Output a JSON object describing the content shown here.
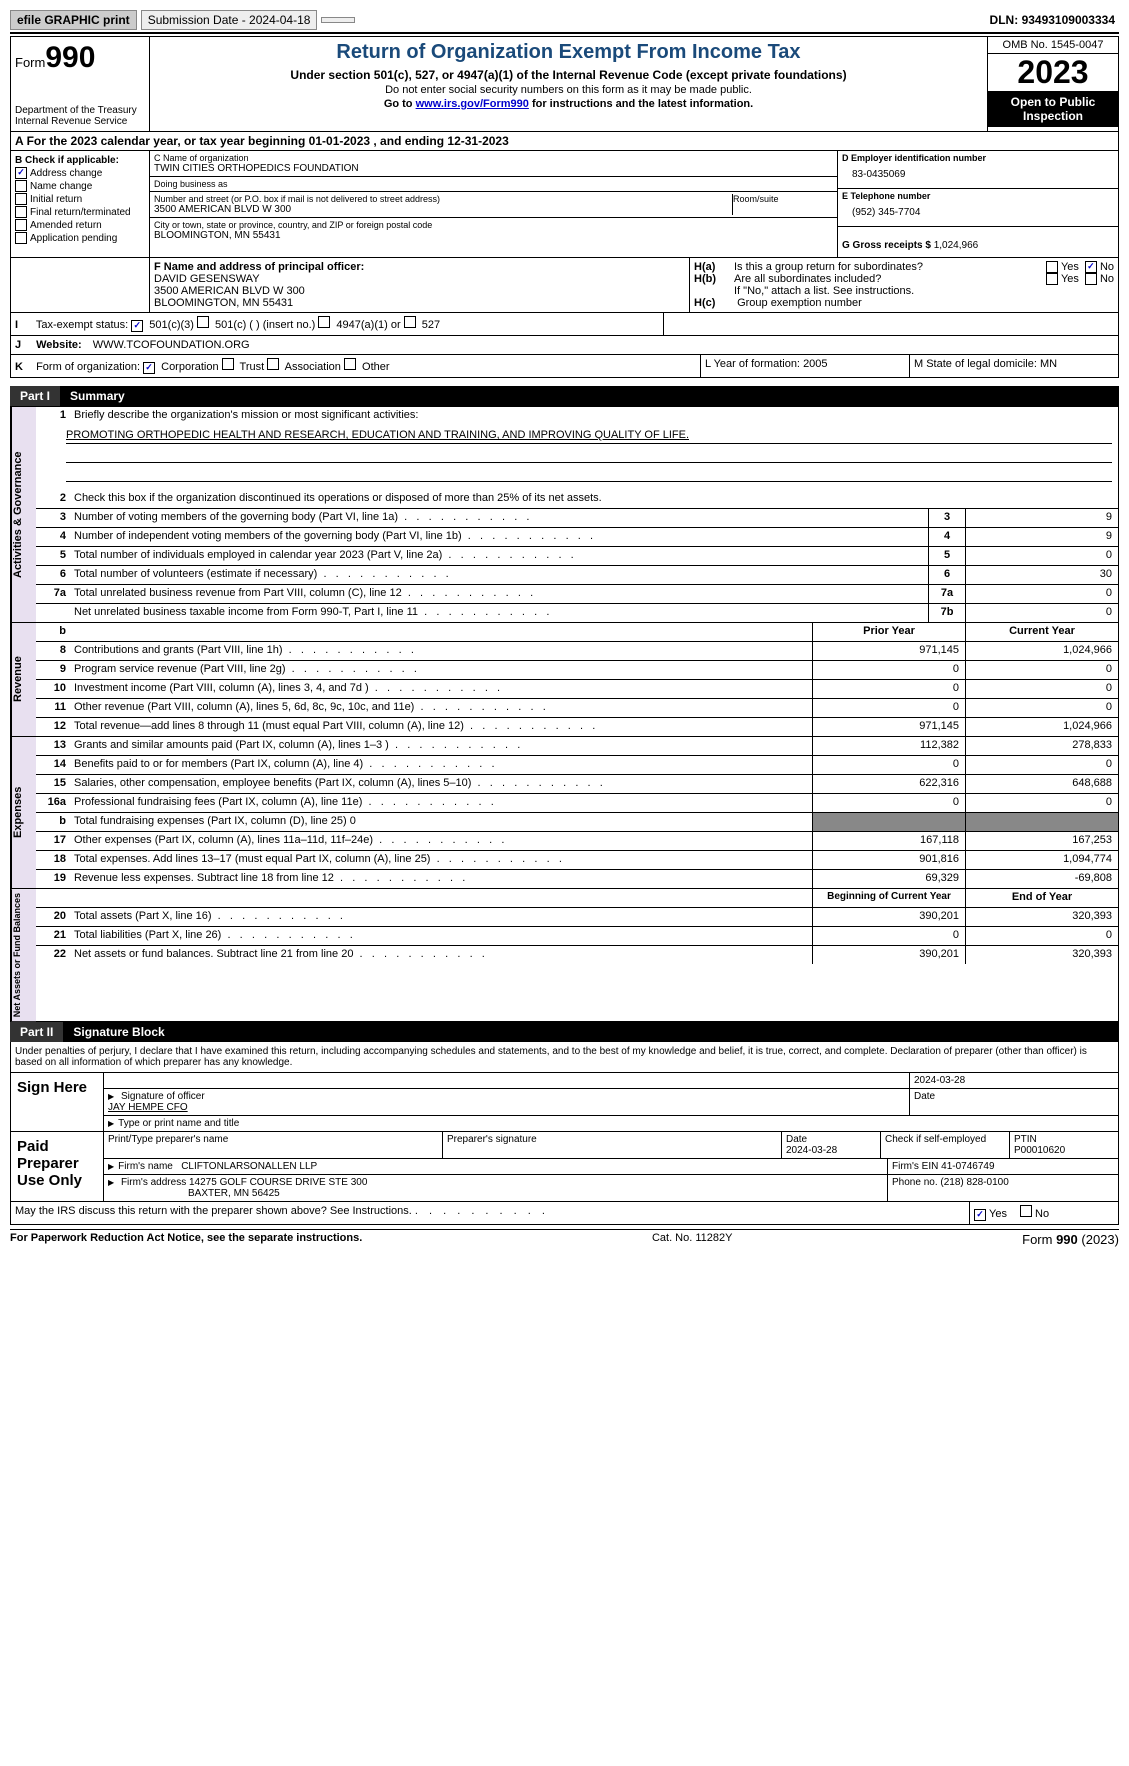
{
  "topbar": {
    "efile": "efile GRAPHIC print",
    "submission": "Submission Date - 2024-04-18",
    "dln_label": "DLN:",
    "dln": "93493109003334"
  },
  "header": {
    "form_small": "Form",
    "form_big": "990",
    "dept": "Department of the Treasury Internal Revenue Service",
    "title": "Return of Organization Exempt From Income Tax",
    "subtitle": "Under section 501(c), 527, or 4947(a)(1) of the Internal Revenue Code (except private foundations)",
    "note1": "Do not enter social security numbers on this form as it may be made public.",
    "note2_pre": "Go to ",
    "note2_link": "www.irs.gov/Form990",
    "note2_post": " for instructions and the latest information.",
    "omb": "OMB No. 1545-0047",
    "year": "2023",
    "inspect": "Open to Public Inspection"
  },
  "taxyear": "For the 2023 calendar year, or tax year beginning 01-01-2023   , and ending 12-31-2023",
  "boxB": {
    "header": "B Check if applicable:",
    "items": [
      {
        "label": "Address change",
        "checked": true
      },
      {
        "label": "Name change",
        "checked": false
      },
      {
        "label": "Initial return",
        "checked": false
      },
      {
        "label": "Final return/terminated",
        "checked": false
      },
      {
        "label": "Amended return",
        "checked": false
      },
      {
        "label": "Application pending",
        "checked": false
      }
    ]
  },
  "boxC": {
    "name_lbl": "C Name of organization",
    "name": "TWIN CITIES ORTHOPEDICS FOUNDATION",
    "dba_lbl": "Doing business as",
    "dba": "",
    "street_lbl": "Number and street (or P.O. box if mail is not delivered to street address)",
    "street": "3500 AMERICAN BLVD W 300",
    "room_lbl": "Room/suite",
    "city_lbl": "City or town, state or province, country, and ZIP or foreign postal code",
    "city": "BLOOMINGTON, MN  55431"
  },
  "boxD": {
    "lbl": "D Employer identification number",
    "val": "83-0435069"
  },
  "boxE": {
    "lbl": "E Telephone number",
    "val": "(952) 345-7704"
  },
  "boxG": {
    "lbl": "G Gross receipts $",
    "val": "1,024,966"
  },
  "boxF": {
    "lbl": "F  Name and address of principal officer:",
    "name": "DAVID GESENSWAY",
    "addr1": "3500 AMERICAN BLVD W 300",
    "addr2": "BLOOMINGTON, MN  55431"
  },
  "boxH": {
    "a_lbl": "Is this a group return for subordinates?",
    "a_yes": false,
    "a_no": true,
    "b_lbl": "Are all subordinates included?",
    "b_note": "If \"No,\" attach a list. See instructions.",
    "c_lbl": "Group exemption number"
  },
  "boxI": {
    "lbl": "Tax-exempt status:",
    "opts": [
      "501(c)(3)",
      "501(c) (  ) (insert no.)",
      "4947(a)(1) or",
      "527"
    ],
    "checked_idx": 0
  },
  "boxJ": {
    "lbl": "Website:",
    "val": "WWW.TCOFOUNDATION.ORG"
  },
  "boxK": {
    "lbl": "Form of organization:",
    "opts": [
      "Corporation",
      "Trust",
      "Association",
      "Other"
    ],
    "checked_idx": 0
  },
  "boxL": {
    "lbl": "L Year of formation:",
    "val": "2005"
  },
  "boxM": {
    "lbl": "M State of legal domicile:",
    "val": "MN"
  },
  "partI": {
    "num": "Part I",
    "title": "Summary",
    "line1_lbl": "Briefly describe the organization's mission or most significant activities:",
    "line1_val": "PROMOTING ORTHOPEDIC HEALTH AND RESEARCH, EDUCATION AND TRAINING, AND IMPROVING QUALITY OF LIFE.",
    "line2": "Check this box      if the organization discontinued its operations or disposed of more than 25% of its net assets.",
    "governance_rows": [
      {
        "n": "3",
        "d": "Number of voting members of the governing body (Part VI, line 1a)",
        "box": "3",
        "v": "9"
      },
      {
        "n": "4",
        "d": "Number of independent voting members of the governing body (Part VI, line 1b)",
        "box": "4",
        "v": "9"
      },
      {
        "n": "5",
        "d": "Total number of individuals employed in calendar year 2023 (Part V, line 2a)",
        "box": "5",
        "v": "0"
      },
      {
        "n": "6",
        "d": "Total number of volunteers (estimate if necessary)",
        "box": "6",
        "v": "30"
      },
      {
        "n": "7a",
        "d": "Total unrelated business revenue from Part VIII, column (C), line 12",
        "box": "7a",
        "v": "0"
      },
      {
        "n": "",
        "d": "Net unrelated business taxable income from Form 990-T, Part I, line 11",
        "box": "7b",
        "v": "0"
      }
    ],
    "rev_hdr_prior": "Prior Year",
    "rev_hdr_curr": "Current Year",
    "revenue_rows": [
      {
        "n": "8",
        "d": "Contributions and grants (Part VIII, line 1h)",
        "p": "971,145",
        "c": "1,024,966"
      },
      {
        "n": "9",
        "d": "Program service revenue (Part VIII, line 2g)",
        "p": "0",
        "c": "0"
      },
      {
        "n": "10",
        "d": "Investment income (Part VIII, column (A), lines 3, 4, and 7d )",
        "p": "0",
        "c": "0"
      },
      {
        "n": "11",
        "d": "Other revenue (Part VIII, column (A), lines 5, 6d, 8c, 9c, 10c, and 11e)",
        "p": "0",
        "c": "0"
      },
      {
        "n": "12",
        "d": "Total revenue—add lines 8 through 11 (must equal Part VIII, column (A), line 12)",
        "p": "971,145",
        "c": "1,024,966"
      }
    ],
    "expense_rows": [
      {
        "n": "13",
        "d": "Grants and similar amounts paid (Part IX, column (A), lines 1–3 )",
        "p": "112,382",
        "c": "278,833"
      },
      {
        "n": "14",
        "d": "Benefits paid to or for members (Part IX, column (A), line 4)",
        "p": "0",
        "c": "0"
      },
      {
        "n": "15",
        "d": "Salaries, other compensation, employee benefits (Part IX, column (A), lines 5–10)",
        "p": "622,316",
        "c": "648,688"
      },
      {
        "n": "16a",
        "d": "Professional fundraising fees (Part IX, column (A), line 11e)",
        "p": "0",
        "c": "0"
      },
      {
        "n": "b",
        "d": "Total fundraising expenses (Part IX, column (D), line 25) 0",
        "p": "GREY",
        "c": "GREY"
      },
      {
        "n": "17",
        "d": "Other expenses (Part IX, column (A), lines 11a–11d, 11f–24e)",
        "p": "167,118",
        "c": "167,253"
      },
      {
        "n": "18",
        "d": "Total expenses. Add lines 13–17 (must equal Part IX, column (A), line 25)",
        "p": "901,816",
        "c": "1,094,774"
      },
      {
        "n": "19",
        "d": "Revenue less expenses. Subtract line 18 from line 12",
        "p": "69,329",
        "c": "-69,808"
      }
    ],
    "na_hdr_prior": "Beginning of Current Year",
    "na_hdr_curr": "End of Year",
    "netassets_rows": [
      {
        "n": "20",
        "d": "Total assets (Part X, line 16)",
        "p": "390,201",
        "c": "320,393"
      },
      {
        "n": "21",
        "d": "Total liabilities (Part X, line 26)",
        "p": "0",
        "c": "0"
      },
      {
        "n": "22",
        "d": "Net assets or fund balances. Subtract line 21 from line 20",
        "p": "390,201",
        "c": "320,393"
      }
    ],
    "side_labels": {
      "gov": "Activities & Governance",
      "rev": "Revenue",
      "exp": "Expenses",
      "na": "Net Assets or Fund Balances"
    }
  },
  "partII": {
    "num": "Part II",
    "title": "Signature Block",
    "declaration": "Under penalties of perjury, I declare that I have examined this return, including accompanying schedules and statements, and to the best of my knowledge and belief, it is true, correct, and complete. Declaration of preparer (other than officer) is based on all information of which preparer has any knowledge.",
    "sign_here": "Sign Here",
    "sig_date": "2024-03-28",
    "sig_officer_lbl": "Signature of officer",
    "sig_officer": "JAY HEMPE  CFO",
    "sig_type_lbl": "Type or print name and title",
    "date_lbl": "Date",
    "paid": "Paid Preparer Use Only",
    "prep_name_lbl": "Print/Type preparer's name",
    "prep_sig_lbl": "Preparer's signature",
    "prep_date": "2024-03-28",
    "self_emp": "Check       if self-employed",
    "ptin_lbl": "PTIN",
    "ptin": "P00010620",
    "firm_name_lbl": "Firm's name",
    "firm_name": "CLIFTONLARSONALLEN LLP",
    "firm_ein_lbl": "Firm's EIN",
    "firm_ein": "41-0746749",
    "firm_addr_lbl": "Firm's address",
    "firm_addr1": "14275 GOLF COURSE DRIVE STE 300",
    "firm_addr2": "BAXTER, MN  56425",
    "phone_lbl": "Phone no.",
    "phone": "(218) 828-0100",
    "discuss": "May the IRS discuss this return with the preparer shown above? See Instructions.",
    "discuss_yes": true
  },
  "footer": {
    "left": "For Paperwork Reduction Act Notice, see the separate instructions.",
    "mid": "Cat. No. 11282Y",
    "right_pre": "Form ",
    "right_form": "990",
    "right_post": " (2023)"
  },
  "labels": {
    "yes": "Yes",
    "no": "No",
    "ha": "H(a)",
    "hb": "H(b)",
    "hc": "H(c)"
  }
}
